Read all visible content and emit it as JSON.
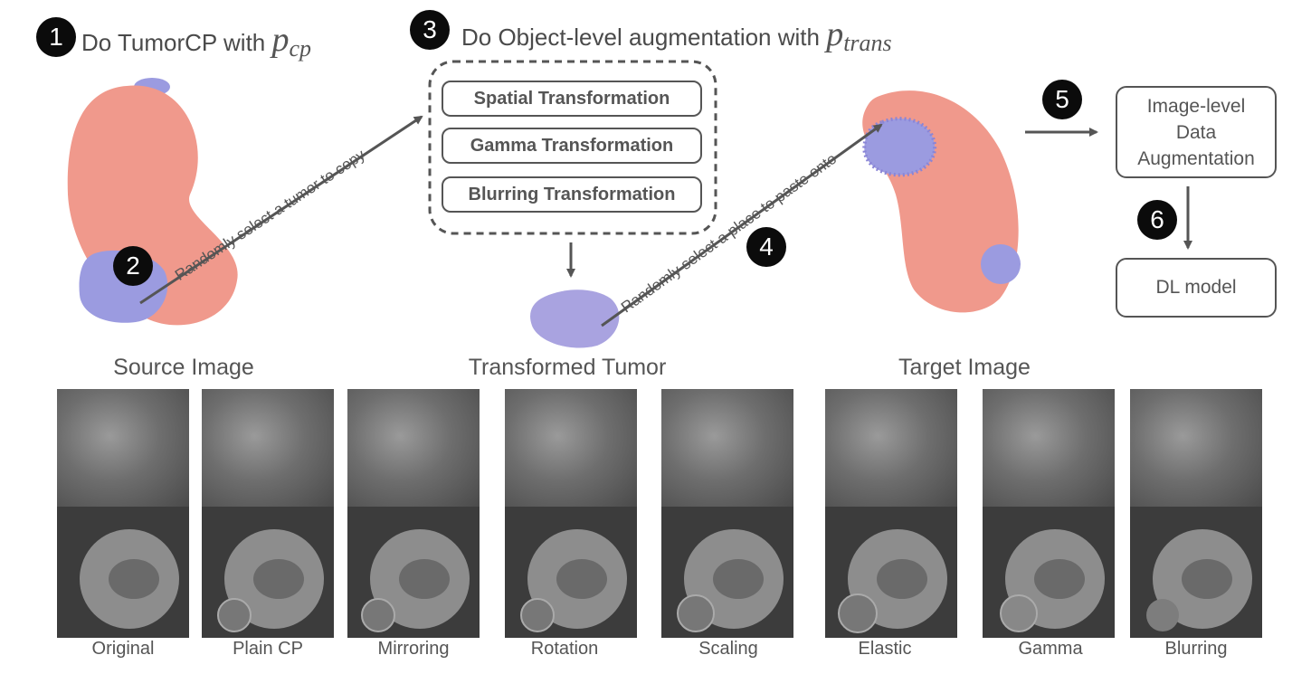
{
  "steps": {
    "step1": {
      "badge": "1",
      "text": "Do TumorCP with ",
      "symbol": "p",
      "sub": "cp"
    },
    "step2": {
      "badge": "2"
    },
    "step3": {
      "badge": "3",
      "text": "Do Object-level augmentation with ",
      "symbol": "p",
      "sub": "trans"
    },
    "step4": {
      "badge": "4"
    },
    "step5": {
      "badge": "5"
    },
    "step6": {
      "badge": "6"
    }
  },
  "transforms": [
    "Spatial Transformation",
    "Gamma Transformation",
    "Blurring Transformation"
  ],
  "arrow_labels": {
    "copy": "Randomly select a tumor to copy",
    "paste": "Randomly select a place to paste onto"
  },
  "boxes": {
    "image_level": [
      "Image-level",
      "Data",
      "Augmentation"
    ],
    "dl_model": "DL model"
  },
  "section_titles": {
    "source": "Source Image",
    "transformed": "Transformed Tumor",
    "target": "Target Image"
  },
  "captions": [
    "Original",
    "Plain CP",
    "Mirroring",
    "Rotation",
    "Scaling",
    "Elastic",
    "Gamma",
    "Blurring"
  ],
  "colors": {
    "kidney": "#f0998c",
    "tumor": "#9b9be0",
    "tumor_transformed": "#a9a3e0",
    "badge": "#0b0b0b",
    "line": "#555555"
  }
}
